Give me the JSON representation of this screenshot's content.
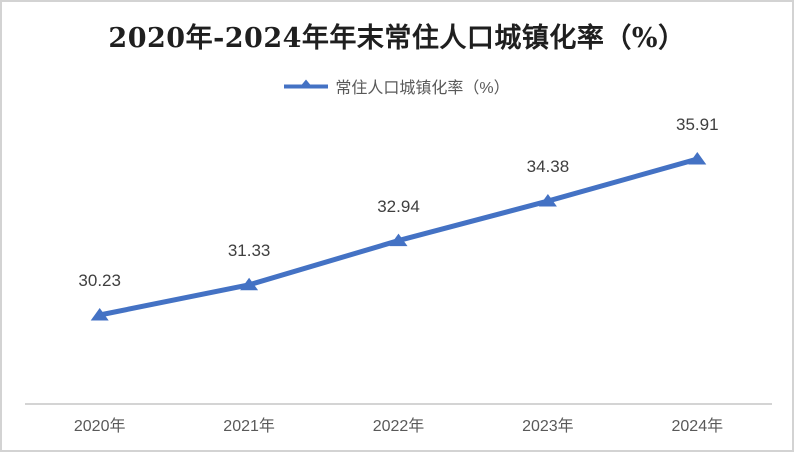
{
  "window": {
    "background": "#ffffff",
    "border_color": "#d3d3d3"
  },
  "chart_data": {
    "type": "line",
    "title": "2020年-2024年年末常住人口城镇化率（%）",
    "legend": {
      "position": "top",
      "entries": [
        "常住人口城镇化率（%）"
      ]
    },
    "categories": [
      "2020年",
      "2021年",
      "2022年",
      "2023年",
      "2024年"
    ],
    "series": [
      {
        "name": "常住人口城镇化率（%）",
        "values": [
          30.23,
          31.33,
          32.94,
          34.38,
          35.91
        ],
        "data_labels": [
          "30.23",
          "31.33",
          "32.94",
          "34.38",
          "35.91"
        ],
        "color": "#4472C4",
        "marker": "triangle-up",
        "line_width": 5
      }
    ],
    "xlabel": "",
    "ylabel": "",
    "ylim": [
      27,
      38
    ],
    "grid": false,
    "y_axis_visible": false,
    "x_axis_line_color": "#c6c6c6",
    "data_label_color": "#3f3f3f",
    "tick_label_color": "#595959",
    "title_color": "#1f1f1f",
    "legend_text_color": "#595959"
  }
}
